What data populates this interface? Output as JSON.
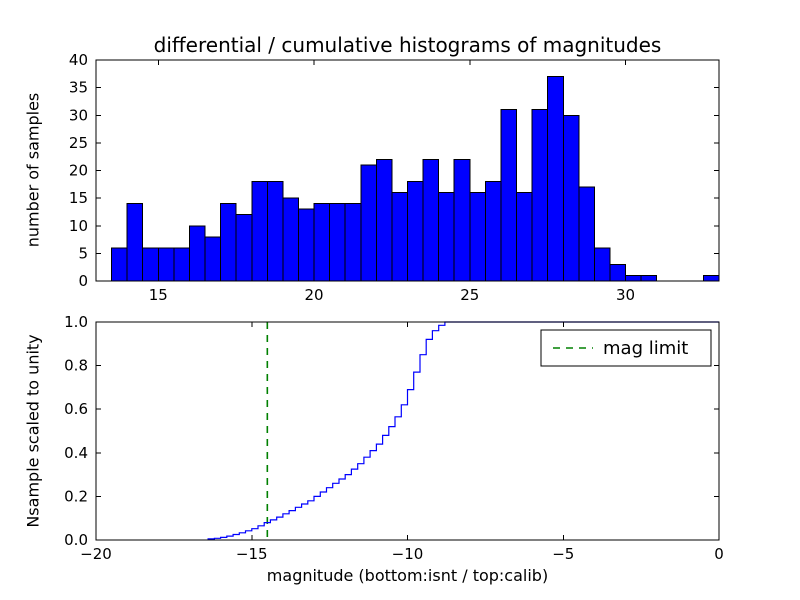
{
  "chart_data": [
    {
      "type": "bar",
      "role": "top-differential-histogram",
      "title": "differential / cumulative histograms of magnitudes",
      "ylabel": "number of samples",
      "bar_color": "#0000ff",
      "bar_edge_color": "#000000",
      "bin_start": 13.5,
      "bin_width": 0.5,
      "counts": [
        6,
        14,
        6,
        6,
        6,
        10,
        8,
        14,
        12,
        18,
        18,
        15,
        13,
        14,
        14,
        14,
        21,
        22,
        16,
        18,
        22,
        16,
        22,
        16,
        18,
        31,
        16,
        31,
        37,
        30,
        17,
        6,
        3,
        1,
        1,
        0,
        0,
        0,
        1
      ],
      "xlim": [
        13,
        33
      ],
      "ylim": [
        0,
        40
      ],
      "xticks": {
        "values": [
          15,
          20,
          25,
          30
        ],
        "labels": [
          "15",
          "20",
          "25",
          "30"
        ]
      },
      "yticks": {
        "values": [
          0,
          5,
          10,
          15,
          20,
          25,
          30,
          35,
          40
        ],
        "labels": [
          "0",
          "5",
          "10",
          "15",
          "20",
          "25",
          "30",
          "35",
          "40"
        ]
      },
      "grid": false,
      "legend_position": "none"
    },
    {
      "type": "line",
      "role": "bottom-cumulative-histogram",
      "ylabel": "Nsample scaled to unity",
      "xlabel": "magnitude (bottom:isnt / top:calib)",
      "line_color": "#0000ff",
      "line_style": "step",
      "step_points": [
        [
          -16.4,
          0.005
        ],
        [
          -16.2,
          0.008
        ],
        [
          -16.0,
          0.012
        ],
        [
          -15.8,
          0.018
        ],
        [
          -15.6,
          0.025
        ],
        [
          -15.4,
          0.033
        ],
        [
          -15.2,
          0.042
        ],
        [
          -15.0,
          0.052
        ],
        [
          -14.8,
          0.065
        ],
        [
          -14.6,
          0.08
        ],
        [
          -14.4,
          0.092
        ],
        [
          -14.2,
          0.105
        ],
        [
          -14.0,
          0.12
        ],
        [
          -13.8,
          0.135
        ],
        [
          -13.6,
          0.15
        ],
        [
          -13.4,
          0.165
        ],
        [
          -13.2,
          0.18
        ],
        [
          -13.0,
          0.2
        ],
        [
          -12.8,
          0.22
        ],
        [
          -12.6,
          0.24
        ],
        [
          -12.4,
          0.26
        ],
        [
          -12.2,
          0.28
        ],
        [
          -12.0,
          0.3
        ],
        [
          -11.8,
          0.325
        ],
        [
          -11.6,
          0.35
        ],
        [
          -11.4,
          0.38
        ],
        [
          -11.2,
          0.41
        ],
        [
          -11.0,
          0.44
        ],
        [
          -10.8,
          0.48
        ],
        [
          -10.6,
          0.52
        ],
        [
          -10.4,
          0.565
        ],
        [
          -10.2,
          0.62
        ],
        [
          -10.0,
          0.69
        ],
        [
          -9.8,
          0.77
        ],
        [
          -9.6,
          0.85
        ],
        [
          -9.4,
          0.92
        ],
        [
          -9.2,
          0.96
        ],
        [
          -9.0,
          0.985
        ],
        [
          -8.8,
          1.0
        ]
      ],
      "mag_limit": -14.5,
      "mag_limit_color": "#008000",
      "mag_limit_style": "dashed",
      "legend": {
        "label": "mag limit",
        "position": "upper right"
      },
      "xlim": [
        -20,
        0
      ],
      "ylim": [
        0,
        1
      ],
      "xticks": {
        "values": [
          -20,
          -15,
          -10,
          -5,
          0
        ],
        "labels": [
          "−20",
          "−15",
          "−10",
          "−5",
          "0"
        ]
      },
      "yticks": {
        "values": [
          0,
          0.2,
          0.4,
          0.6,
          0.8,
          1.0
        ],
        "labels": [
          "0.0",
          "0.2",
          "0.4",
          "0.6",
          "0.8",
          "1.0"
        ]
      },
      "grid": false
    }
  ]
}
